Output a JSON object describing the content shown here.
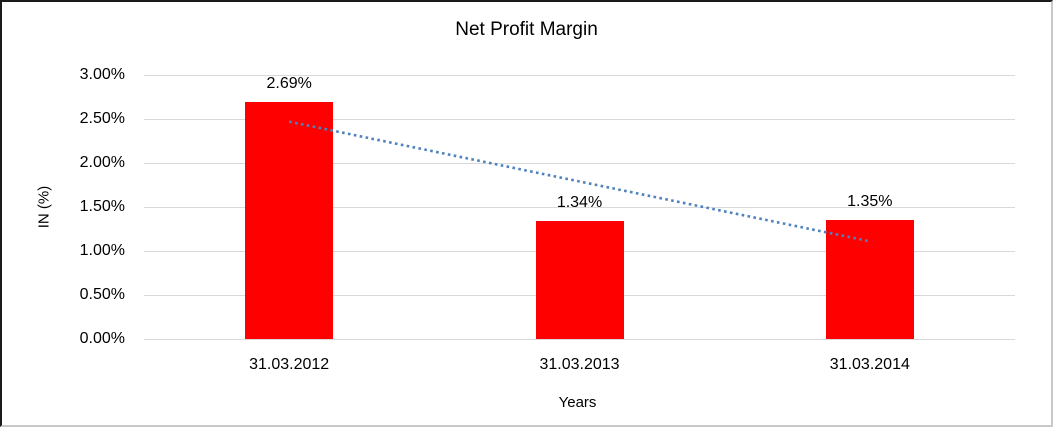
{
  "chart_data": {
    "type": "bar",
    "title": "Net Profit Margin",
    "xlabel": "Years",
    "ylabel": "IN (%)",
    "categories": [
      "31.03.2012",
      "31.03.2013",
      "31.03.2014"
    ],
    "values": [
      2.69,
      1.34,
      1.35
    ],
    "data_labels": [
      "2.69%",
      "1.34%",
      "1.35%"
    ],
    "ylim": [
      0,
      3
    ],
    "yticks": [
      {
        "value": 0.0,
        "label": "0.00%"
      },
      {
        "value": 0.5,
        "label": "0.50%"
      },
      {
        "value": 1.0,
        "label": "1.00%"
      },
      {
        "value": 1.5,
        "label": "1.50%"
      },
      {
        "value": 2.0,
        "label": "2.00%"
      },
      {
        "value": 2.5,
        "label": "2.50%"
      },
      {
        "value": 3.0,
        "label": "3.00%"
      }
    ],
    "grid": true,
    "legend": "none",
    "colors": {
      "bar": "#FF0000",
      "gridline": "#D9D9D9",
      "trendline": "#4E81BD",
      "text": "#000000"
    },
    "trendline": {
      "style": "dotted",
      "start": {
        "category_index": 0,
        "value": 2.47
      },
      "end": {
        "category_index": 2,
        "value": 1.11
      }
    }
  }
}
